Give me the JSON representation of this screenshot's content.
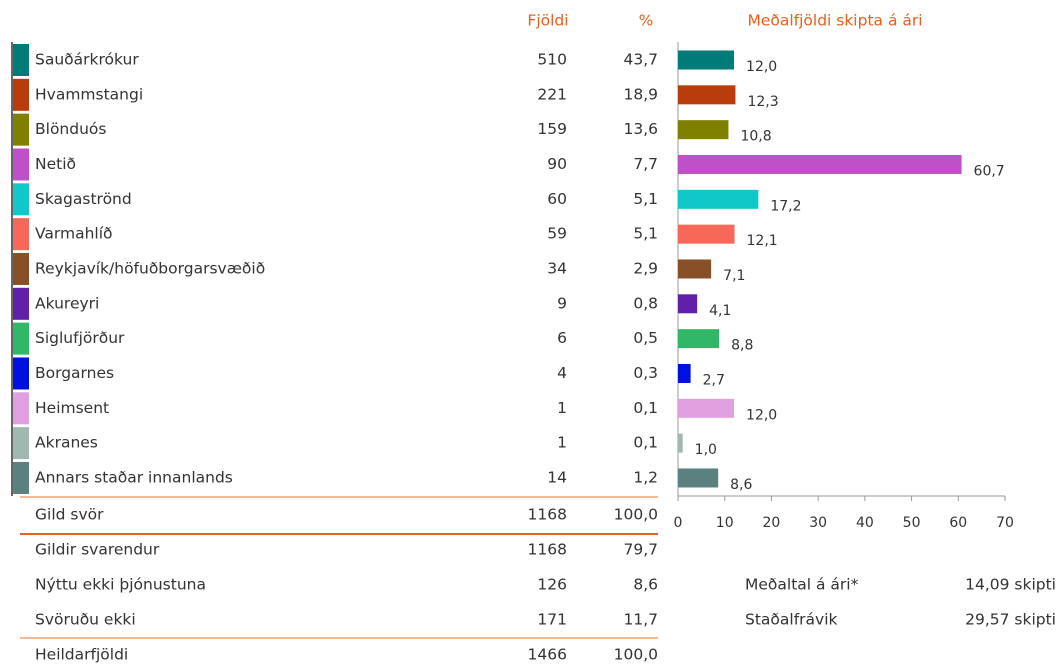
{
  "table": {
    "headers": [
      "Fjöldi",
      "%"
    ],
    "rows": [
      [
        "Sauðárkrókur",
        510,
        "43,7"
      ],
      [
        "Hvammstangi",
        221,
        "18,9"
      ],
      [
        "Blönduós",
        159,
        "13,6"
      ],
      [
        "Netið",
        90,
        "7,7"
      ],
      [
        "Skagaströnd",
        60,
        "5,1"
      ],
      [
        "Varmahlíð",
        59,
        "5,1"
      ],
      [
        "Reykjavík/höfuðborgarsvæðið",
        34,
        "2,9"
      ],
      [
        "Akureyri",
        9,
        "0,8"
      ],
      [
        "Siglufjörður",
        6,
        "0,5"
      ],
      [
        "Borgarnes",
        4,
        "0,3"
      ],
      [
        "Heimsent",
        1,
        "0,1"
      ],
      [
        "Akranes",
        1,
        "0,1"
      ],
      [
        "Annars staðar innanlands",
        14,
        "1,2"
      ]
    ],
    "summary": [
      [
        "Gild svör",
        1168,
        "100,0"
      ],
      [
        "Gildir svarendur",
        1168,
        "79,7"
      ],
      [
        "Nýttu ekki þjónustuna",
        126,
        "8,6"
      ],
      [
        "Svöruðu ekki",
        171,
        "11,7"
      ],
      [
        "Heildarfjöldi",
        1466,
        "100,0"
      ]
    ]
  },
  "chart_data": {
    "type": "bar",
    "orientation": "horizontal",
    "title": "Meðalfjöldi skipta á ári",
    "values": [
      12.0,
      12.3,
      10.8,
      60.7,
      17.2,
      12.1,
      7.1,
      4.1,
      8.8,
      2.7,
      12.0,
      1.0,
      8.6
    ],
    "value_labels": [
      "12,0",
      "12,3",
      "10,8",
      "60,7",
      "17,2",
      "12,1",
      "7,1",
      "4,1",
      "8,8",
      "2,7",
      "12,0",
      "1,0",
      "8,6"
    ],
    "colors": [
      "#007b78",
      "#b83c0c",
      "#808000",
      "#c050c8",
      "#10c8c8",
      "#f86858",
      "#885028",
      "#6020a8",
      "#30b868",
      "#0010e0",
      "#e0a0e0",
      "#a0b8b0",
      "#5a8080"
    ],
    "xlim": [
      0,
      70
    ],
    "xticks": [
      0,
      10,
      20,
      30,
      40,
      50,
      60,
      70
    ]
  },
  "stats": [
    [
      "Meðaltal á ári*",
      "14,09 skipti"
    ],
    [
      "Staðalfrávik",
      "29,57 skipti"
    ]
  ]
}
